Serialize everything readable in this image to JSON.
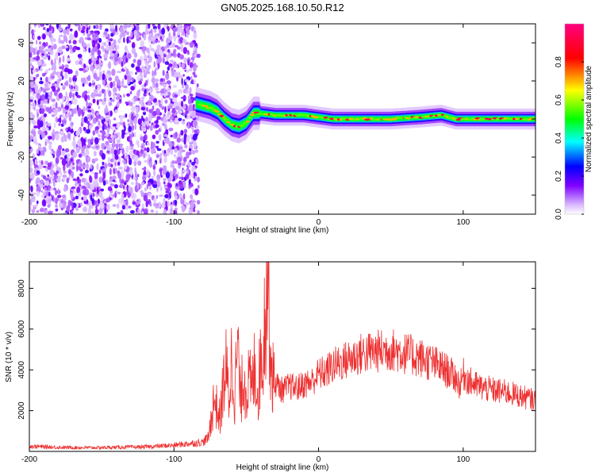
{
  "title": "GN05.2025.168.10.50.R12",
  "chart_data": [
    {
      "type": "heatmap",
      "xlabel": "Height of straight line (km)",
      "ylabel": "Frequency (Hz)",
      "xlim": [
        -200,
        150
      ],
      "ylim": [
        -50,
        50
      ],
      "x_ticks": [
        -200,
        -100,
        0,
        100
      ],
      "y_ticks": [
        -40,
        -20,
        0,
        20,
        40
      ],
      "grid": false,
      "colorbar": {
        "label": "Normalized spectral amplitude",
        "range": [
          0,
          1
        ],
        "ticks": [
          "0.0",
          "0.2",
          "0.4",
          "0.6",
          "0.8"
        ],
        "colors": [
          "#ffffff",
          "#8000ff",
          "#0000ff",
          "#00ffff",
          "#00ff00",
          "#ffff00",
          "#ff0000",
          "#ff0080"
        ]
      },
      "regions": [
        {
          "x_range": [
            -200,
            -83
          ],
          "description": "broadband noise",
          "amplitude_range": [
            0.0,
            0.25
          ]
        },
        {
          "x_range": [
            -83,
            150
          ],
          "description": "narrow signal band",
          "amplitude_range": [
            0.0,
            1.0
          ]
        }
      ],
      "signal_band_center": [
        {
          "x": -85,
          "y": 8
        },
        {
          "x": -75,
          "y": 6
        },
        {
          "x": -70,
          "y": 4
        },
        {
          "x": -65,
          "y": 0
        },
        {
          "x": -60,
          "y": -3
        },
        {
          "x": -55,
          "y": -4
        },
        {
          "x": -50,
          "y": -2
        },
        {
          "x": -45,
          "y": 3
        },
        {
          "x": -40,
          "y": 3
        },
        {
          "x": -30,
          "y": 2
        },
        {
          "x": -20,
          "y": 2
        },
        {
          "x": -10,
          "y": 2
        },
        {
          "x": 0,
          "y": 1
        },
        {
          "x": 10,
          "y": 0
        },
        {
          "x": 30,
          "y": 0
        },
        {
          "x": 50,
          "y": 0
        },
        {
          "x": 70,
          "y": 1
        },
        {
          "x": 85,
          "y": 2
        },
        {
          "x": 95,
          "y": 0
        },
        {
          "x": 110,
          "y": 0
        },
        {
          "x": 130,
          "y": 0
        },
        {
          "x": 150,
          "y": 0
        }
      ]
    },
    {
      "type": "line",
      "xlabel": "Height of straight line (km)",
      "ylabel": "SNR (10 * v/v)",
      "xlim": [
        -200,
        150
      ],
      "ylim": [
        0,
        9300
      ],
      "x_ticks": [
        -200,
        -100,
        0,
        100
      ],
      "y_ticks": [
        2000,
        4000,
        6000,
        8000
      ],
      "grid": false,
      "color": "#ee3030",
      "series": [
        {
          "x": [
            -200,
            -180,
            -160,
            -140,
            -120,
            -100,
            -90,
            -80,
            -76,
            -74,
            -72,
            -70,
            -68,
            -66,
            -64,
            -62,
            -60,
            -58,
            -56,
            -54,
            -52,
            -50,
            -48,
            -46,
            -44,
            -42,
            -40,
            -38,
            -37,
            -36,
            -35,
            -34,
            -33,
            -32,
            -30,
            -28,
            -25,
            -20,
            -15,
            -10,
            -5,
            0,
            5,
            10,
            20,
            30,
            40,
            50,
            60,
            70,
            80,
            90,
            95,
            98,
            100,
            105,
            110,
            120,
            130,
            140,
            150
          ],
          "y": [
            250,
            200,
            180,
            200,
            220,
            300,
            380,
            450,
            700,
            1800,
            2600,
            2000,
            1600,
            3200,
            4000,
            2600,
            4600,
            2800,
            5200,
            2400,
            3800,
            3100,
            3400,
            3000,
            4300,
            2800,
            4500,
            5200,
            7200,
            8300,
            9200,
            6800,
            4600,
            3600,
            3400,
            3200,
            3000,
            3200,
            3100,
            3300,
            3400,
            3800,
            3900,
            4200,
            4500,
            4800,
            4900,
            5000,
            4800,
            4600,
            4300,
            3900,
            3600,
            3200,
            3800,
            3400,
            3200,
            3000,
            2900,
            2700,
            2500
          ]
        }
      ]
    }
  ]
}
